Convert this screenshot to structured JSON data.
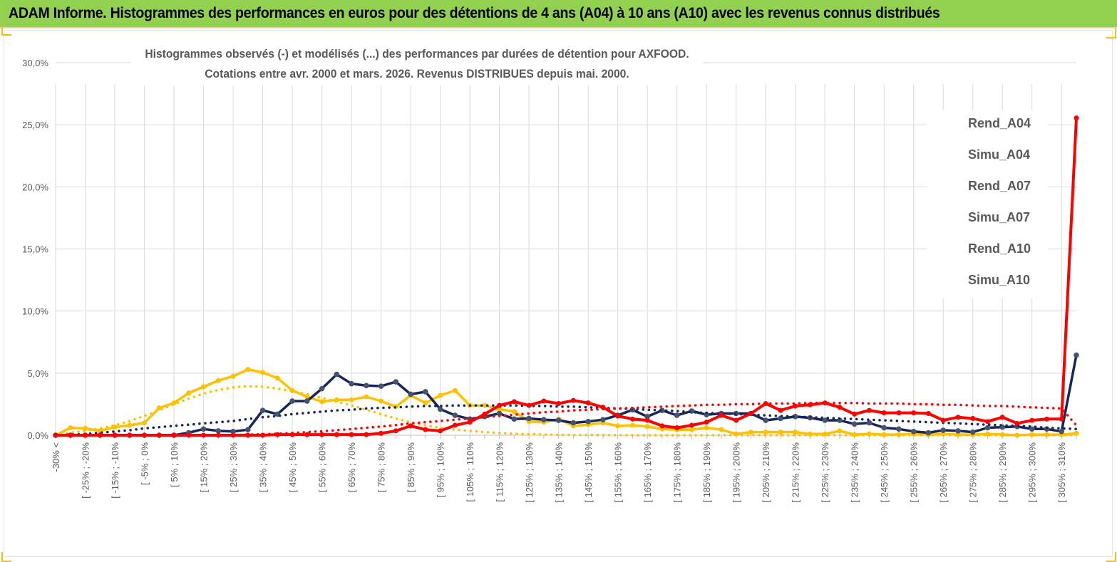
{
  "header": {
    "title": "ADAM Informe. Histogrammes des performances en euros pour des détentions de 4 ans (A04) à 10 ans (A10) avec les revenus connus distribués",
    "background": "#92d050"
  },
  "chart_data": {
    "type": "line",
    "title_line1": "Histogrammes observés (-) et modélisés (...) des performances par durées de détention pour AXFOOD.",
    "title_line2": "Cotations entre avr. 2000 et mars. 2026. Revenus DISTRIBUES depuis mai. 2000.",
    "ylim": [
      0,
      30
    ],
    "yticks": [
      0,
      5,
      10,
      15,
      20,
      25,
      30
    ],
    "ytick_labels": [
      "0,0%",
      "5,0%",
      "10,0%",
      "15,0%",
      "20,0%",
      "25,0%",
      "30,0%"
    ],
    "xtick_labels": [
      "-30% <",
      "[ -25% ; -20%",
      "[ -15% ; -10%",
      "[ -5% ; 0%",
      "[ 5% ; 10%",
      "[ 15% ; 20%",
      "[ 25% ; 30%",
      "[ 35% ; 40%",
      "[ 45% ; 50%",
      "[ 55% ; 60%",
      "[ 65% ; 70%",
      "[ 75% ; 80%",
      "[ 85% ; 90%",
      "[ 95% ; 100%",
      "[ 105% ; 110%",
      "[ 115% ; 120%",
      "[ 125% ; 130%",
      "[ 135% ; 140%",
      "[ 145% ; 150%",
      "[ 155% ; 160%",
      "[ 165% ; 170%",
      "[ 175% ; 180%",
      "[ 185% ; 190%",
      "[ 195% ; 200%",
      "[ 205% ; 210%",
      "[ 215% ; 220%",
      "[ 225% ; 230%",
      "[ 235% ; 240%",
      "[ 245% ; 250%",
      "[ 255% ; 260%",
      "[ 265% ; 270%",
      "[ 275% ; 280%",
      "[ 285% ; 290%",
      "[ 295% ; 300%",
      "[ 305% ; 310%"
    ],
    "n_points": 70,
    "series": [
      {
        "name": "Rend_A04",
        "style": "solid",
        "color": "#ffc000",
        "values": [
          0,
          0.6,
          0.55,
          0.35,
          0.65,
          0.8,
          1.0,
          2.2,
          2.6,
          3.4,
          3.9,
          4.4,
          4.75,
          5.3,
          5.05,
          4.6,
          3.6,
          3.1,
          2.7,
          2.85,
          2.85,
          3.1,
          2.75,
          2.3,
          3.2,
          2.6,
          3.2,
          3.6,
          2.4,
          2.4,
          2.1,
          1.9,
          1.1,
          1.05,
          1.3,
          0.75,
          0.85,
          1.0,
          0.75,
          0.8,
          0.7,
          0.5,
          0.45,
          0.45,
          0.6,
          0.45,
          0.1,
          0.25,
          0.25,
          0.25,
          0.25,
          0.1,
          0.1,
          0.35,
          0.05,
          0.1,
          0.05,
          0.05,
          0.1,
          0.05,
          0.1,
          0.05,
          0.05,
          0.1,
          0.05,
          0,
          0.05,
          0.05,
          0.05,
          0.15
        ]
      },
      {
        "name": "Simu_A04",
        "style": "dotted",
        "color": "#ffc000",
        "values": [
          0,
          0.2,
          0.35,
          0.55,
          0.8,
          1.15,
          1.55,
          2.0,
          2.5,
          2.95,
          3.35,
          3.65,
          3.85,
          3.95,
          3.9,
          3.75,
          3.55,
          3.3,
          3.0,
          2.7,
          2.4,
          2.05,
          1.7,
          1.35,
          1.05,
          0.8,
          0.6,
          0.45,
          0.35,
          0.25,
          0.18,
          0.12,
          0.08,
          0.05,
          0.03,
          0.02,
          0.01,
          0.01,
          0,
          0,
          0,
          0,
          0,
          0,
          0,
          0,
          0,
          0,
          0,
          0,
          0,
          0,
          0,
          0,
          0,
          0,
          0,
          0,
          0,
          0,
          0,
          0,
          0,
          0,
          0,
          0,
          0,
          0,
          0,
          0
        ]
      },
      {
        "name": "Rend_A07",
        "style": "solid",
        "color": "#17255a",
        "values": [
          0,
          0,
          0,
          0,
          0,
          0,
          0,
          0,
          0,
          0.2,
          0.5,
          0.35,
          0.3,
          0.45,
          2.0,
          1.7,
          2.75,
          2.75,
          3.75,
          4.9,
          4.15,
          4.0,
          3.95,
          4.3,
          3.3,
          3.5,
          2.1,
          1.6,
          1.3,
          1.5,
          1.75,
          1.3,
          1.35,
          1.25,
          1.2,
          1.0,
          1.1,
          1.25,
          1.6,
          2.05,
          1.5,
          2.0,
          1.6,
          1.95,
          1.65,
          1.75,
          1.75,
          1.75,
          1.2,
          1.35,
          1.5,
          1.4,
          1.2,
          1.2,
          0.9,
          1.0,
          0.6,
          0.5,
          0.3,
          0.2,
          0.4,
          0.35,
          0.25,
          0.6,
          0.65,
          0.7,
          0.5,
          0.5,
          0.3,
          6.45
        ]
      },
      {
        "name": "Simu_A07",
        "style": "dotted",
        "color": "#17255a",
        "values": [
          0,
          0.05,
          0.1,
          0.2,
          0.3,
          0.4,
          0.55,
          0.65,
          0.75,
          0.85,
          0.95,
          1.05,
          1.15,
          1.3,
          1.45,
          1.55,
          1.7,
          1.8,
          1.9,
          2.0,
          2.05,
          2.15,
          2.2,
          2.25,
          2.3,
          2.35,
          2.35,
          2.4,
          2.4,
          2.4,
          2.4,
          2.4,
          2.35,
          2.35,
          2.3,
          2.3,
          2.25,
          2.2,
          2.15,
          2.1,
          2.05,
          2.0,
          1.95,
          1.85,
          1.8,
          1.75,
          1.7,
          1.65,
          1.6,
          1.55,
          1.5,
          1.45,
          1.4,
          1.35,
          1.3,
          1.25,
          1.2,
          1.15,
          1.1,
          1.05,
          1.0,
          0.95,
          0.9,
          0.85,
          0.8,
          0.75,
          0.7,
          0.6,
          0.55,
          0.5
        ]
      },
      {
        "name": "Rend_A10",
        "style": "solid",
        "color": "#ff0000",
        "values": [
          0,
          0,
          0,
          0,
          0,
          0,
          0,
          0,
          0,
          0,
          0,
          0,
          0,
          0,
          0,
          0.05,
          0.05,
          0.05,
          0.05,
          0.05,
          0.05,
          0.05,
          0.15,
          0.35,
          0.75,
          0.45,
          0.35,
          0.8,
          1.05,
          1.7,
          2.4,
          2.7,
          2.4,
          2.75,
          2.55,
          2.8,
          2.6,
          2.25,
          1.55,
          1.3,
          1.2,
          0.75,
          0.6,
          0.8,
          1.05,
          1.6,
          1.2,
          1.75,
          2.55,
          2.0,
          2.35,
          2.45,
          2.6,
          2.25,
          1.7,
          2.0,
          1.8,
          1.8,
          1.8,
          1.75,
          1.2,
          1.45,
          1.35,
          1.1,
          1.45,
          0.95,
          1.2,
          1.3,
          1.3,
          25.55
        ]
      },
      {
        "name": "Simu_A10",
        "style": "dotted",
        "color": "#ff0000",
        "values": [
          0,
          0,
          0,
          0,
          0,
          0,
          0,
          0,
          0,
          0,
          0,
          0.01,
          0.02,
          0.05,
          0.08,
          0.12,
          0.18,
          0.25,
          0.32,
          0.4,
          0.5,
          0.6,
          0.7,
          0.82,
          0.95,
          1.05,
          1.15,
          1.25,
          1.35,
          1.45,
          1.55,
          1.65,
          1.75,
          1.85,
          1.9,
          2.0,
          2.05,
          2.1,
          2.15,
          2.2,
          2.25,
          2.3,
          2.35,
          2.4,
          2.45,
          2.45,
          2.5,
          2.5,
          2.55,
          2.55,
          2.55,
          2.6,
          2.6,
          2.6,
          2.6,
          2.55,
          2.55,
          2.55,
          2.5,
          2.5,
          2.45,
          2.45,
          2.4,
          2.35,
          2.35,
          2.3,
          2.25,
          2.2,
          2.15,
          0.8
        ]
      }
    ],
    "legend_position": "right"
  }
}
